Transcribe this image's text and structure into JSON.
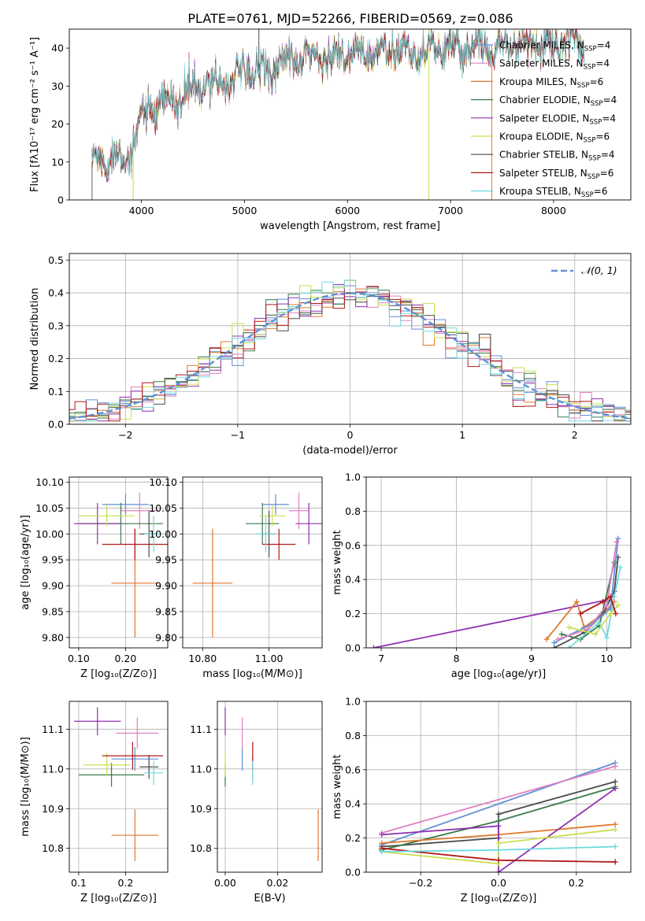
{
  "figure_title": "PLATE=0761, MJD=52266, FIBERID=0569, z=0.086",
  "colors": {
    "cm": "#5f8fd6",
    "sm": "#e080c0",
    "km": "#e07830",
    "ce": "#3a7a4a",
    "se": "#9030b0",
    "ke": "#c8e050",
    "cs": "#4a4a4a",
    "ss": "#b01818",
    "ks": "#70d8e0",
    "normal": "#6090d8",
    "grid": "#b0b0b0"
  },
  "chart_data": [
    {
      "id": "spectrum",
      "type": "line",
      "xlabel": "wavelength [Angstrom, rest frame]",
      "ylabel": "Flux [fλ10⁻¹⁷ erg cm⁻² s⁻¹ A⁻¹]",
      "xlim": [
        3300,
        8750
      ],
      "ylim": [
        0,
        45
      ],
      "xticks": [
        4000,
        5000,
        6000,
        7000,
        8000
      ],
      "yticks": [
        0,
        10,
        20,
        30,
        40
      ],
      "continuum": [
        [
          3520,
          10
        ],
        [
          3900,
          12
        ],
        [
          4000,
          22
        ],
        [
          4300,
          26
        ],
        [
          4600,
          30
        ],
        [
          5000,
          33
        ],
        [
          5500,
          37
        ],
        [
          6000,
          38
        ],
        [
          6500,
          39
        ],
        [
          7000,
          40
        ],
        [
          7500,
          41
        ],
        [
          8000,
          41
        ],
        [
          8300,
          41
        ]
      ],
      "spikes": [
        [
          5140,
          45,
          "cs"
        ],
        [
          6790,
          0,
          "ke"
        ],
        [
          7400,
          0,
          "km"
        ],
        [
          3920,
          0,
          "ke"
        ]
      ],
      "legend_position": "upper right",
      "legend": [
        {
          "key": "cm",
          "label": "Chabrier MILES, N",
          "sub": "SSP",
          "suffix": "=4"
        },
        {
          "key": "sm",
          "label": "Salpeter MILES, N",
          "sub": "SSP",
          "suffix": "=4"
        },
        {
          "key": "km",
          "label": "Kroupa MILES, N",
          "sub": "SSP",
          "suffix": "=6"
        },
        {
          "key": "ce",
          "label": "Chabrier ELODIE, N",
          "sub": "SSP",
          "suffix": "=4"
        },
        {
          "key": "se",
          "label": "Salpeter ELODIE, N",
          "sub": "SSP",
          "suffix": "=4"
        },
        {
          "key": "ke",
          "label": "Kroupa ELODIE, N",
          "sub": "SSP",
          "suffix": "=6"
        },
        {
          "key": "cs",
          "label": "Chabrier STELIB, N",
          "sub": "SSP",
          "suffix": "=4"
        },
        {
          "key": "ss",
          "label": "Salpeter STELIB, N",
          "sub": "SSP",
          "suffix": "=6"
        },
        {
          "key": "ks",
          "label": "Kroupa STELIB, N",
          "sub": "SSP",
          "suffix": "=6"
        }
      ]
    },
    {
      "id": "residuals",
      "type": "histogram",
      "xlabel": "(data-model)/error",
      "ylabel": "Normed distribution",
      "xlim": [
        -2.5,
        2.5
      ],
      "ylim": [
        0,
        0.52
      ],
      "xticks": [
        -2,
        -1,
        0,
        1,
        2
      ],
      "yticks": [
        0.0,
        0.1,
        0.2,
        0.3,
        0.4,
        0.5
      ],
      "grid": true,
      "legend": [
        {
          "label": "𝒩(0, 1)"
        }
      ],
      "legend_position": "upper right",
      "normal_curve": {
        "mean": 0,
        "sigma": 1
      }
    },
    {
      "id": "age_vs_Z",
      "type": "errorbar",
      "xlabel": "Z [log₁₀(Z/Z⊙)]",
      "ylabel": "age  [log₁₀(age/yr)]",
      "xlim": [
        0.08,
        0.29
      ],
      "ylim": [
        9.78,
        10.11
      ],
      "xticks": [
        0.1,
        0.2
      ],
      "yticks": [
        9.8,
        9.85,
        9.9,
        9.95,
        10.0,
        10.05,
        10.1
      ],
      "grid": true,
      "points": [
        {
          "key": "cm",
          "x": 0.2,
          "xe": 0.05,
          "y": 10.057,
          "ye": 0.02
        },
        {
          "key": "sm",
          "x": 0.23,
          "xe": 0.04,
          "y": 10.045,
          "ye": 0.035
        },
        {
          "key": "km",
          "x": 0.22,
          "xe": 0.05,
          "y": 9.905,
          "ye": 0.105
        },
        {
          "key": "ce",
          "x": 0.19,
          "xe": 0.09,
          "y": 10.02,
          "ye": 0.04
        },
        {
          "key": "se",
          "x": 0.14,
          "xe": 0.05,
          "y": 10.02,
          "ye": 0.04
        },
        {
          "key": "ke",
          "x": 0.16,
          "xe": 0.06,
          "y": 10.035,
          "ye": 0.02
        },
        {
          "key": "cs",
          "x": 0.25,
          "xe": 0.02,
          "y": 10.0,
          "ye": 0.045
        },
        {
          "key": "ss",
          "x": 0.22,
          "xe": 0.07,
          "y": 9.98,
          "ye": 0.03
        },
        {
          "key": "ks",
          "x": 0.26,
          "xe": 0.02,
          "y": 10.0,
          "ye": 0.035
        }
      ]
    },
    {
      "id": "age_vs_mass",
      "type": "errorbar",
      "xlabel": "mass [log₁₀(M/M⊙)]",
      "xlim": [
        10.74,
        11.16
      ],
      "ylim": [
        9.78,
        10.11
      ],
      "xticks": [
        10.8,
        11.0
      ],
      "yticks": [
        9.8,
        9.85,
        9.9,
        9.95,
        10.0,
        10.05,
        10.1
      ],
      "grid": true,
      "points": [
        {
          "key": "cm",
          "x": 11.02,
          "xe": 0.04,
          "y": 10.057,
          "ye": 0.02
        },
        {
          "key": "sm",
          "x": 11.09,
          "xe": 0.03,
          "y": 10.045,
          "ye": 0.035
        },
        {
          "key": "km",
          "x": 10.83,
          "xe": 0.06,
          "y": 9.905,
          "ye": 0.105
        },
        {
          "key": "ce",
          "x": 10.98,
          "xe": 0.05,
          "y": 10.02,
          "ye": 0.04
        },
        {
          "key": "se",
          "x": 11.12,
          "xe": 0.04,
          "y": 10.02,
          "ye": 0.04
        },
        {
          "key": "ke",
          "x": 11.01,
          "xe": 0.04,
          "y": 10.035,
          "ye": 0.02
        },
        {
          "key": "cs",
          "x": 11.0,
          "xe": 0.02,
          "y": 10.0,
          "ye": 0.045
        },
        {
          "key": "ss",
          "x": 11.03,
          "xe": 0.05,
          "y": 9.98,
          "ye": 0.03
        },
        {
          "key": "ks",
          "x": 10.99,
          "xe": 0.03,
          "y": 10.0,
          "ye": 0.035
        }
      ]
    },
    {
      "id": "weight_vs_age",
      "type": "line",
      "xlabel": "age  [log₁₀(age/yr)]",
      "ylabel": "mass weight",
      "xlim": [
        6.8,
        10.32
      ],
      "ylim": [
        0,
        1.0
      ],
      "xticks": [
        7,
        8,
        9,
        10
      ],
      "yticks": [
        0.0,
        0.2,
        0.4,
        0.6,
        0.8,
        1.0
      ],
      "grid": true,
      "series": [
        {
          "key": "se",
          "x": [
            6.9,
            10.0
          ],
          "y": [
            0.0,
            0.28
          ]
        },
        {
          "key": "km",
          "x": [
            9.2,
            9.6,
            9.7,
            9.95,
            10.1
          ],
          "y": [
            0.05,
            0.27,
            0.12,
            0.2,
            0.27
          ]
        },
        {
          "key": "cs",
          "x": [
            9.3,
            9.7,
            9.95,
            10.1,
            10.15
          ],
          "y": [
            0.0,
            0.09,
            0.2,
            0.33,
            0.53
          ]
        },
        {
          "key": "ce",
          "x": [
            9.4,
            9.65,
            9.9,
            10.1
          ],
          "y": [
            0.08,
            0.05,
            0.13,
            0.5
          ]
        },
        {
          "key": "cm",
          "x": [
            9.3,
            9.8,
            10.05,
            10.15
          ],
          "y": [
            0.03,
            0.14,
            0.23,
            0.64
          ]
        },
        {
          "key": "sm",
          "x": [
            9.35,
            9.75,
            10.0,
            10.13
          ],
          "y": [
            0.05,
            0.11,
            0.25,
            0.62
          ]
        },
        {
          "key": "ks",
          "x": [
            9.5,
            9.9,
            10.0,
            10.1,
            10.18
          ],
          "y": [
            0.0,
            0.15,
            0.06,
            0.3,
            0.47
          ]
        },
        {
          "key": "ke",
          "x": [
            9.5,
            9.85,
            10.05,
            10.15
          ],
          "y": [
            0.12,
            0.08,
            0.2,
            0.25
          ]
        },
        {
          "key": "ss",
          "x": [
            9.65,
            9.95,
            10.05,
            10.12
          ],
          "y": [
            0.2,
            0.27,
            0.3,
            0.2
          ]
        }
      ]
    },
    {
      "id": "mass_vs_Z",
      "type": "errorbar",
      "xlabel": "Z [log₁₀(Z/Z⊙)]",
      "ylabel": "mass [log₁₀(M/M⊙)]",
      "xlim": [
        0.08,
        0.29
      ],
      "ylim": [
        10.74,
        11.17
      ],
      "xticks": [
        0.1,
        0.2
      ],
      "yticks": [
        10.8,
        10.9,
        11.0,
        11.1
      ],
      "grid": true,
      "points": [
        {
          "key": "cm",
          "x": 0.22,
          "xe": 0.05,
          "y": 11.025,
          "ye": 0.03
        },
        {
          "key": "sm",
          "x": 0.225,
          "xe": 0.045,
          "y": 11.09,
          "ye": 0.04
        },
        {
          "key": "km",
          "x": 0.22,
          "xe": 0.05,
          "y": 10.833,
          "ye": 0.065
        },
        {
          "key": "ce",
          "x": 0.17,
          "xe": 0.07,
          "y": 10.985,
          "ye": 0.03
        },
        {
          "key": "se",
          "x": 0.14,
          "xe": 0.05,
          "y": 11.12,
          "ye": 0.035
        },
        {
          "key": "ke",
          "x": 0.16,
          "xe": 0.05,
          "y": 11.01,
          "ye": 0.03
        },
        {
          "key": "cs",
          "x": 0.25,
          "xe": 0.02,
          "y": 11.005,
          "ye": 0.03
        },
        {
          "key": "ss",
          "x": 0.215,
          "xe": 0.065,
          "y": 11.033,
          "ye": 0.035
        },
        {
          "key": "ks",
          "x": 0.26,
          "xe": 0.02,
          "y": 10.99,
          "ye": 0.03
        }
      ]
    },
    {
      "id": "mass_vs_ebv",
      "type": "errorbar",
      "xlabel": "E(B-V)",
      "xlim": [
        -0.003,
        0.037
      ],
      "ylim": [
        10.74,
        11.17
      ],
      "xticks": [
        0.0,
        0.02
      ],
      "yticks": [
        10.8,
        10.9,
        11.0,
        11.1
      ],
      "grid": true,
      "points": [
        {
          "key": "cm",
          "x": 0.0065,
          "xe": 0,
          "y": 11.025,
          "ye": 0.03
        },
        {
          "key": "sm",
          "x": 0.0065,
          "xe": 0,
          "y": 11.09,
          "ye": 0.04
        },
        {
          "key": "km",
          "x": 0.0355,
          "xe": 0,
          "y": 10.833,
          "ye": 0.065
        },
        {
          "key": "ce",
          "x": 0.0,
          "xe": 0,
          "y": 10.985,
          "ye": 0.03
        },
        {
          "key": "se",
          "x": 0.0,
          "xe": 0,
          "y": 11.12,
          "ye": 0.035
        },
        {
          "key": "ke",
          "x": 0.0,
          "xe": 0,
          "y": 11.01,
          "ye": 0.03
        },
        {
          "key": "cs",
          "x": 0.0105,
          "xe": 0,
          "y": 11.005,
          "ye": 0.03
        },
        {
          "key": "ss",
          "x": 0.0105,
          "xe": 0,
          "y": 11.033,
          "ye": 0.035
        },
        {
          "key": "ks",
          "x": 0.0105,
          "xe": 0,
          "y": 10.99,
          "ye": 0.03
        }
      ]
    },
    {
      "id": "weight_vs_Z",
      "type": "line",
      "xlabel": "Z [log₁₀(Z/Z⊙)]",
      "ylabel": "mass weight",
      "xlim": [
        -0.34,
        0.34
      ],
      "ylim": [
        0,
        1.0
      ],
      "xticks": [
        -0.2,
        0.0,
        0.2
      ],
      "yticks": [
        0.0,
        0.2,
        0.4,
        0.6,
        0.8,
        1.0
      ],
      "grid": true,
      "series": [
        {
          "key": "cm",
          "x": [
            -0.3,
            0.3
          ],
          "y": [
            0.16,
            0.64
          ]
        },
        {
          "key": "sm",
          "x": [
            -0.3,
            0.3
          ],
          "y": [
            0.23,
            0.62
          ]
        },
        {
          "key": "cs",
          "x": [
            -0.3,
            0.0,
            0.0,
            0.3
          ],
          "y": [
            0.15,
            0.2,
            0.34,
            0.53
          ]
        },
        {
          "key": "ce",
          "x": [
            -0.3,
            0.0,
            0.3
          ],
          "y": [
            0.13,
            0.3,
            0.5
          ]
        },
        {
          "key": "km",
          "x": [
            -0.3,
            0.0,
            0.3
          ],
          "y": [
            0.17,
            0.22,
            0.28
          ]
        },
        {
          "key": "se",
          "x": [
            -0.3,
            0.0,
            0.0,
            0.3
          ],
          "y": [
            0.22,
            0.27,
            0.0,
            0.49
          ]
        },
        {
          "key": "ke",
          "x": [
            -0.3,
            0.0,
            0.0,
            0.3
          ],
          "y": [
            0.12,
            0.05,
            0.17,
            0.25
          ]
        },
        {
          "key": "ss",
          "x": [
            -0.3,
            0.0,
            0.3
          ],
          "y": [
            0.14,
            0.07,
            0.06
          ]
        },
        {
          "key": "ks",
          "x": [
            -0.3,
            0.0,
            0.3
          ],
          "y": [
            0.12,
            0.13,
            0.15
          ]
        }
      ]
    }
  ]
}
